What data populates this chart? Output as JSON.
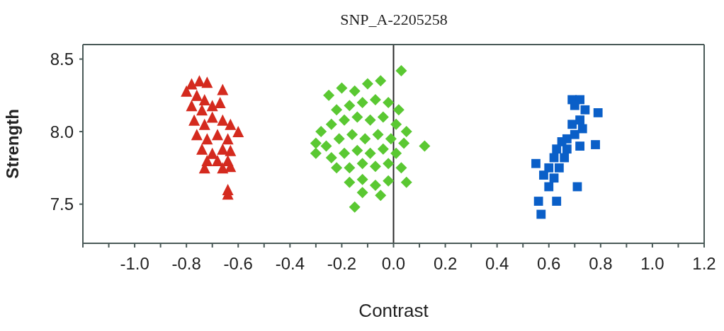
{
  "chart_data": {
    "type": "scatter",
    "title": "SNP_A-2205258",
    "xlabel": "Contrast",
    "ylabel": "Strength",
    "xlim": [
      -1.2,
      1.2
    ],
    "ylim": [
      7.23,
      8.6
    ],
    "xticks": [
      {
        "value": -1.2,
        "label": null
      },
      {
        "value": -1.1,
        "label": null
      },
      {
        "value": -1.0,
        "label": "-1.0"
      },
      {
        "value": -0.9,
        "label": null
      },
      {
        "value": -0.8,
        "label": "-0.8"
      },
      {
        "value": -0.7,
        "label": null
      },
      {
        "value": -0.6,
        "label": "-0.6"
      },
      {
        "value": -0.5,
        "label": null
      },
      {
        "value": -0.4,
        "label": "-0.4"
      },
      {
        "value": -0.3,
        "label": null
      },
      {
        "value": -0.2,
        "label": "-0.2"
      },
      {
        "value": -0.1,
        "label": null
      },
      {
        "value": 0,
        "label": "0.0"
      },
      {
        "value": 0.1,
        "label": null
      },
      {
        "value": 0.2,
        "label": "0.2"
      },
      {
        "value": 0.3,
        "label": null
      },
      {
        "value": 0.4,
        "label": "0.4"
      },
      {
        "value": 0.5,
        "label": null
      },
      {
        "value": 0.6,
        "label": "0.6"
      },
      {
        "value": 0.7,
        "label": null
      },
      {
        "value": 0.8,
        "label": "0.8"
      },
      {
        "value": 0.9,
        "label": null
      },
      {
        "value": 1.0,
        "label": "1.0"
      },
      {
        "value": 1.1,
        "label": null
      },
      {
        "value": 1.2,
        "label": "1.2"
      }
    ],
    "yticks": [
      {
        "value": 7.5,
        "label": "7.5"
      },
      {
        "value": 8.0,
        "label": "8.0"
      },
      {
        "value": 8.5,
        "label": "8.5"
      }
    ],
    "legend": false,
    "ref_lines": [
      {
        "axis": "x",
        "value": 0,
        "label": null,
        "color": "#2a2a2a"
      }
    ],
    "series": [
      {
        "marker": "triangle",
        "color": "#d42a1e",
        "x": [
          -0.78,
          -0.75,
          -0.72,
          -0.8,
          -0.76,
          -0.73,
          -0.66,
          -0.78,
          -0.74,
          -0.7,
          -0.67,
          -0.77,
          -0.73,
          -0.7,
          -0.66,
          -0.63,
          -0.6,
          -0.76,
          -0.72,
          -0.68,
          -0.64,
          -0.74,
          -0.7,
          -0.66,
          -0.63,
          -0.72,
          -0.68,
          -0.64,
          -0.73,
          -0.66,
          -0.63,
          -0.64,
          -0.64
        ],
        "values": [
          8.33,
          8.35,
          8.34,
          8.28,
          8.25,
          8.22,
          8.29,
          8.18,
          8.15,
          8.18,
          8.2,
          8.08,
          8.05,
          8.1,
          8.08,
          8.05,
          8.0,
          7.98,
          7.95,
          7.98,
          7.95,
          7.88,
          7.85,
          7.88,
          7.87,
          7.8,
          7.8,
          7.8,
          7.75,
          7.75,
          7.76,
          7.6,
          7.57
        ]
      },
      {
        "marker": "diamond",
        "color": "#5ac832",
        "x": [
          -0.25,
          -0.2,
          -0.15,
          -0.1,
          -0.05,
          0.03,
          -0.22,
          -0.17,
          -0.12,
          -0.07,
          -0.02,
          0.02,
          -0.28,
          -0.24,
          -0.19,
          -0.14,
          -0.09,
          -0.04,
          0.01,
          0.05,
          -0.3,
          -0.26,
          -0.21,
          -0.16,
          -0.11,
          -0.06,
          -0.01,
          0.04,
          0.12,
          -0.3,
          -0.24,
          -0.19,
          -0.14,
          -0.09,
          -0.04,
          0.01,
          -0.22,
          -0.17,
          -0.12,
          -0.07,
          -0.02,
          0.03,
          -0.17,
          -0.12,
          -0.07,
          -0.02,
          0.05,
          -0.12,
          -0.05,
          -0.15
        ],
        "values": [
          8.25,
          8.3,
          8.28,
          8.33,
          8.35,
          8.42,
          8.15,
          8.18,
          8.2,
          8.22,
          8.2,
          8.15,
          8.0,
          8.05,
          8.08,
          8.1,
          8.08,
          8.1,
          8.05,
          8.0,
          7.85,
          7.9,
          7.95,
          7.98,
          7.95,
          7.98,
          7.95,
          7.92,
          7.9,
          7.92,
          7.82,
          7.85,
          7.87,
          7.85,
          7.88,
          7.85,
          7.75,
          7.75,
          7.78,
          7.76,
          7.78,
          7.75,
          7.65,
          7.67,
          7.63,
          7.66,
          7.65,
          7.58,
          7.56,
          7.48
        ]
      },
      {
        "marker": "square",
        "color": "#0a5fc8",
        "x": [
          0.69,
          0.72,
          0.7,
          0.74,
          0.79,
          0.72,
          0.69,
          0.73,
          0.67,
          0.7,
          0.65,
          0.78,
          0.63,
          0.67,
          0.72,
          0.62,
          0.66,
          0.55,
          0.6,
          0.64,
          0.58,
          0.62,
          0.6,
          0.71,
          0.63,
          0.56,
          0.57
        ],
        "values": [
          8.22,
          8.22,
          8.18,
          8.15,
          8.13,
          8.08,
          8.05,
          8.02,
          7.95,
          7.98,
          7.93,
          7.91,
          7.88,
          7.88,
          7.9,
          7.82,
          7.82,
          7.78,
          7.75,
          7.75,
          7.7,
          7.68,
          7.62,
          7.62,
          7.52,
          7.52,
          7.43
        ]
      }
    ]
  }
}
